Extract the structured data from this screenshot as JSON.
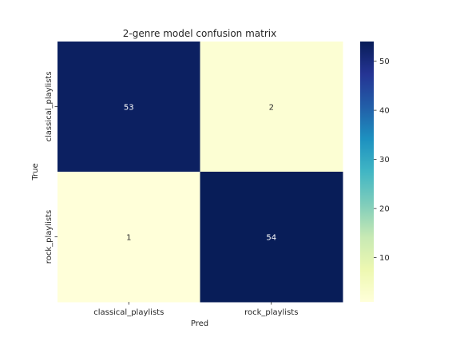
{
  "chart_data": {
    "type": "heatmap",
    "title": "2-genre model confusion matrix",
    "xlabel": "Pred",
    "ylabel": "True",
    "x_categories": [
      "classical_playlists",
      "rock_playlists"
    ],
    "y_categories": [
      "classical_playlists",
      "rock_playlists"
    ],
    "values": [
      [
        53,
        2
      ],
      [
        1,
        54
      ]
    ],
    "colormap": "YlGnBu",
    "colorbar": {
      "vmin": 1,
      "vmax": 54,
      "ticks": [
        10,
        20,
        30,
        40,
        50
      ]
    },
    "grid": false
  },
  "colors": {
    "low": "#ffffd9",
    "high": "#081d58",
    "dark_text": "#262626",
    "light_text": "#ffffff"
  }
}
